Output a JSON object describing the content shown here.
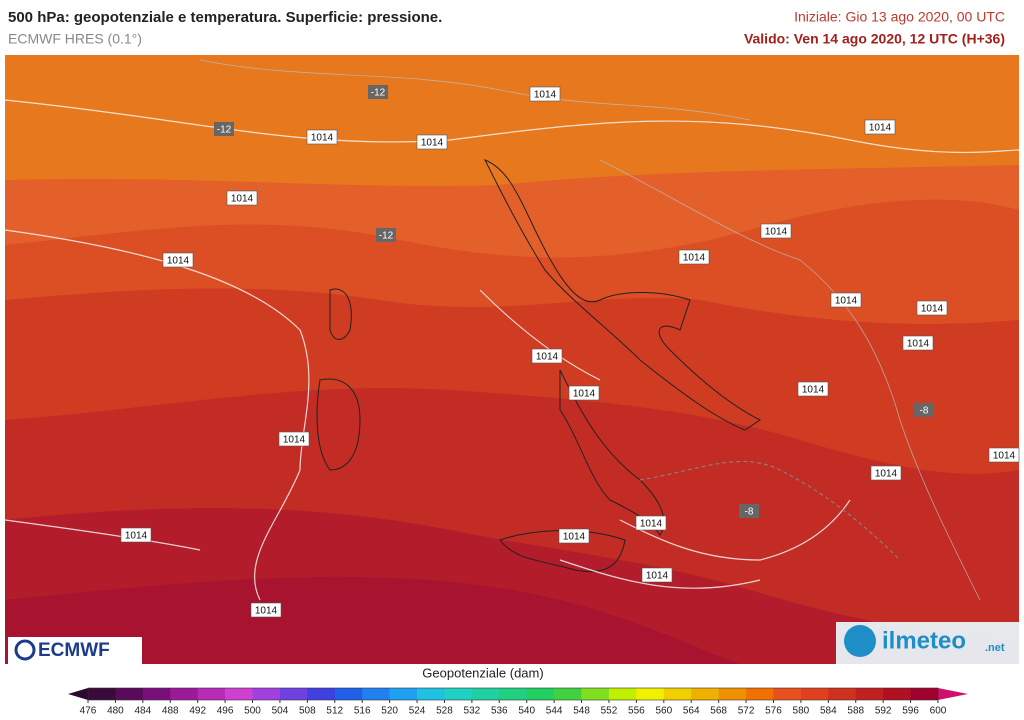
{
  "header": {
    "title": "500 hPa: geopotenziale e temperatura. Superficie: pressione.",
    "subtitle": "ECMWF HRES (0.1°)",
    "initial": "Iniziale: Gio 13 ago 2020, 00 UTC",
    "valid": "Valido: Ven 14 ago 2020, 12 UTC (H+36)"
  },
  "map": {
    "labels": [
      "-12",
      "-12",
      "1014",
      "1014",
      "1014",
      "1014",
      "1014",
      "-12",
      "1014",
      "1014",
      "1014",
      "1014",
      "1014",
      "1014",
      "1014",
      "1014",
      "1014",
      "-8",
      "1014",
      "1014",
      "1014",
      "-8",
      "1014",
      "1014",
      "1014",
      "1014",
      "1014"
    ]
  },
  "logos": {
    "left": "ECMWF",
    "right": "ilmeteo",
    "right_suffix": ".net"
  },
  "colorbar": {
    "title": "Geopotenziale (dam)",
    "ticks": [
      476,
      480,
      484,
      488,
      492,
      496,
      500,
      504,
      508,
      512,
      516,
      520,
      524,
      528,
      532,
      536,
      540,
      544,
      548,
      552,
      556,
      560,
      564,
      568,
      572,
      576,
      580,
      584,
      588,
      592,
      596,
      600
    ],
    "colors": [
      "#3a0a3a",
      "#5a0a5a",
      "#7a0f7a",
      "#9a1a9a",
      "#b82ab8",
      "#d040d0",
      "#a040e0",
      "#7040e0",
      "#4040e0",
      "#2060e8",
      "#2080f0",
      "#20a0f0",
      "#20c0e0",
      "#20d0c0",
      "#20d0a0",
      "#20d080",
      "#20d060",
      "#40d040",
      "#80e020",
      "#c0f000",
      "#f0f000",
      "#f0d000",
      "#f0b000",
      "#f09000",
      "#f07000",
      "#e85020",
      "#e04020",
      "#d03020",
      "#c02020",
      "#b01020",
      "#a00030"
    ],
    "low_color": "#2a0a2a",
    "high_color": "#d0106a"
  }
}
